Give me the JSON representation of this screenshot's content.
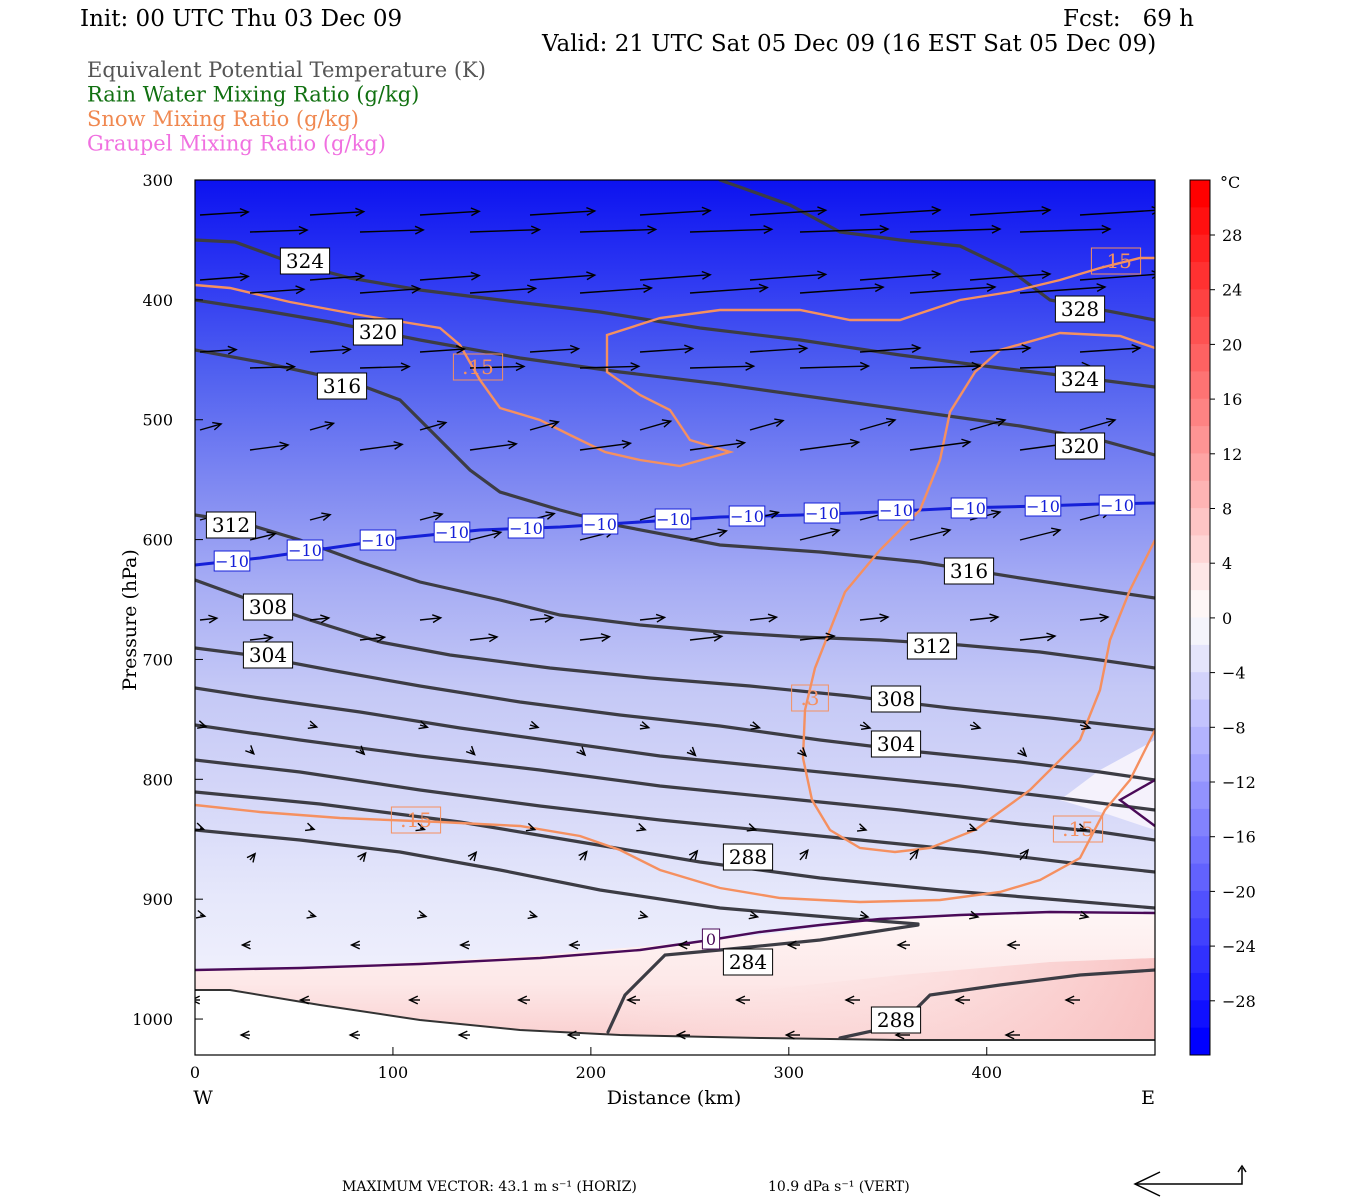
{
  "header": {
    "init": "Init: 00 UTC Thu 03 Dec 09",
    "fcst": "Fcst:   69 h",
    "valid": "Valid: 21 UTC Sat 05 Dec 09 (16 EST Sat 05 Dec 09)"
  },
  "legend": [
    {
      "label": "Equivalent Potential Temperature (K)",
      "color": "#555555"
    },
    {
      "label": "Rain Water Mixing Ratio (g/kg)",
      "color": "#107010"
    },
    {
      "label": "Snow Mixing Ratio (g/kg)",
      "color": "#f08850"
    },
    {
      "label": "Graupel Mixing Ratio (g/kg)",
      "color": "#f070e0"
    }
  ],
  "footer": {
    "max_vector": "MAXIMUM VECTOR:  43.1 m s⁻¹ (HORIZ)",
    "max_vert": "10.9 dPa s⁻¹ (VERT)"
  },
  "chart_data": {
    "type": "cross-section",
    "xlabel": "Distance (km)",
    "ylabel": "Pressure (hPa)",
    "x_ticks": [
      "0",
      "100",
      "200",
      "300",
      "400"
    ],
    "y_ticks": [
      "300",
      "400",
      "500",
      "600",
      "700",
      "800",
      "900",
      "1000"
    ],
    "xlim": [
      0,
      485
    ],
    "ylim": [
      1030,
      300
    ],
    "x_end_labels": {
      "left": "W",
      "right": "E"
    },
    "colorbar": {
      "unit": "°C",
      "ticks": [
        "28",
        "24",
        "20",
        "16",
        "12",
        "8",
        "4",
        "0",
        "−4",
        "−8",
        "−12",
        "−16",
        "−20",
        "−24",
        "−28"
      ],
      "warm_color": "#ff0000",
      "cold_color": "#0000ff"
    },
    "theta_e_labels": [
      "324",
      "320",
      "316",
      "312",
      "308",
      "304",
      "328",
      "324",
      "320",
      "316",
      "312",
      "308",
      "304",
      "288",
      "284",
      "288"
    ],
    "isotherm_labels": [
      "−10",
      "−10",
      "−10",
      "−10",
      "−10",
      "−10",
      "−10",
      "−10",
      "−10",
      "−10",
      "−10",
      "−10",
      "−10",
      "−10",
      "0"
    ],
    "snow_labels": [
      ".15",
      ".15",
      ".3",
      ".15",
      ".15"
    ]
  }
}
